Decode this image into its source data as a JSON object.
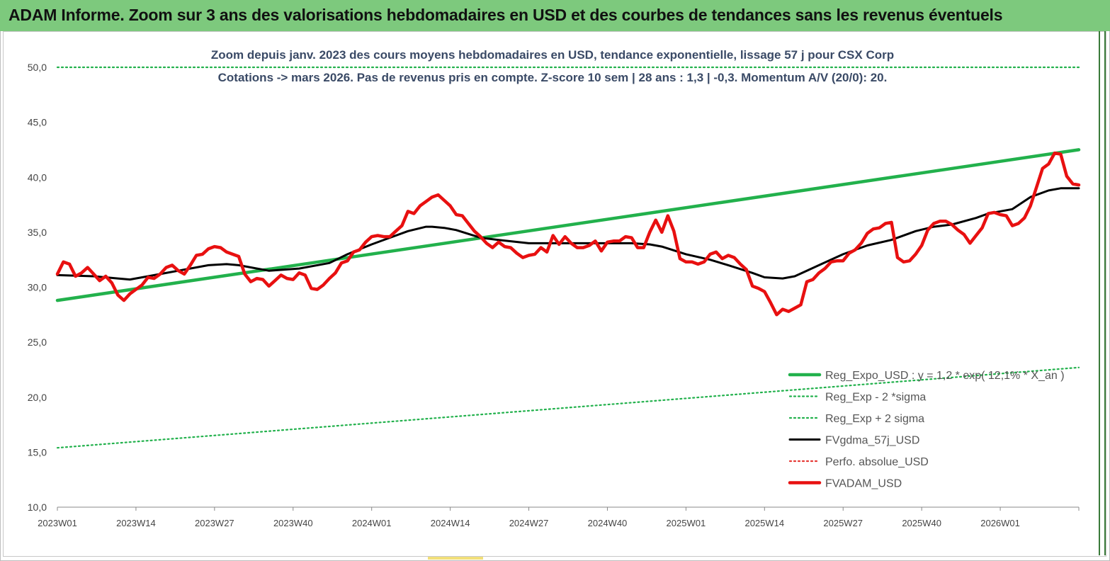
{
  "banner": {
    "title": "ADAM Informe. Zoom sur 3 ans des valorisations hebdomadaires en USD et des courbes de tendances sans les revenus éventuels",
    "color": "#7dc97d"
  },
  "chart_data": {
    "type": "line",
    "title": "Zoom depuis janv. 2023 des cours moyens hebdomadaires en USD, tendance exponentielle, lissage 57 j pour CSX Corp",
    "subtitle": "Cotations -> mars 2026. Pas de revenus pris en  compte. Z-score 10 sem  | 28 ans : 1,3  | -0,3. Momentum A/V (20/0): 20.",
    "xlabel": "",
    "ylabel": "",
    "ylim": [
      10,
      50
    ],
    "yticks": [
      "10,0",
      "15,0",
      "20,0",
      "25,0",
      "30,0",
      "35,0",
      "40,0",
      "45,0",
      "50,0"
    ],
    "n_weeks": 170,
    "xticks": [
      {
        "week": 0,
        "label": "2023W01"
      },
      {
        "week": 13,
        "label": "2023W14"
      },
      {
        "week": 26,
        "label": "2023W27"
      },
      {
        "week": 39,
        "label": "2023W40"
      },
      {
        "week": 52,
        "label": "2024W01"
      },
      {
        "week": 65,
        "label": "2024W14"
      },
      {
        "week": 78,
        "label": "2024W27"
      },
      {
        "week": 91,
        "label": "2024W40"
      },
      {
        "week": 104,
        "label": "2025W01"
      },
      {
        "week": 117,
        "label": "2025W14"
      },
      {
        "week": 130,
        "label": "2025W27"
      },
      {
        "week": 143,
        "label": "2025W40"
      },
      {
        "week": 156,
        "label": "2026W01"
      }
    ],
    "series": [
      {
        "name": "Reg_Expo_USD : y = 1,2 * exp( 12,1% *  X_an )",
        "style": "solid-thick",
        "color": "#22b14c",
        "x": [
          0,
          169
        ],
        "y": [
          28.8,
          42.5
        ]
      },
      {
        "name": "Reg_Exp - 2 *sigma",
        "style": "dotted",
        "color": "#22b14c",
        "x": [
          0,
          169
        ],
        "y": [
          15.4,
          22.7
        ]
      },
      {
        "name": "Reg_Exp + 2 sigma",
        "style": "dotted",
        "color": "#22b14c",
        "x": [
          0,
          169
        ],
        "y": [
          50.0,
          50.0
        ]
      },
      {
        "name": "FVgdma_57j_USD",
        "style": "solid",
        "color": "#000000",
        "x": [
          0,
          6,
          10,
          12,
          15,
          17,
          20,
          25,
          28,
          30,
          35,
          40,
          45,
          48,
          52,
          55,
          58,
          61,
          62,
          64,
          66,
          70,
          73,
          78,
          85,
          90,
          95,
          98,
          100,
          104,
          108,
          111,
          115,
          117,
          120,
          122,
          126,
          130,
          134,
          138,
          142,
          145,
          148,
          152,
          154,
          158,
          161,
          164,
          166,
          169
        ],
        "y": [
          31.1,
          31.0,
          30.8,
          30.7,
          31.0,
          31.2,
          31.5,
          32.0,
          32.1,
          32.0,
          31.5,
          31.7,
          32.2,
          33.0,
          33.9,
          34.5,
          35.1,
          35.5,
          35.5,
          35.4,
          35.2,
          34.5,
          34.3,
          34.0,
          34.0,
          34.0,
          34.0,
          33.9,
          33.7,
          33.0,
          32.5,
          32.0,
          31.3,
          30.9,
          30.8,
          31.0,
          32.0,
          33.0,
          33.8,
          34.3,
          35.1,
          35.5,
          35.7,
          36.3,
          36.7,
          37.1,
          38.2,
          38.8,
          39.0,
          39.0
        ]
      },
      {
        "name": "Perfo. absolue_USD",
        "style": "dotted",
        "color": "#e53935",
        "x": [],
        "y": []
      },
      {
        "name": "FVADAM_USD",
        "style": "solid-thick",
        "color": "#e81010",
        "x": [
          0,
          1,
          2,
          3,
          4,
          5,
          6,
          7,
          8,
          9,
          10,
          11,
          12,
          13,
          14,
          15,
          16,
          17,
          18,
          19,
          20,
          21,
          22,
          23,
          24,
          25,
          26,
          27,
          28,
          29,
          30,
          31,
          32,
          33,
          34,
          35,
          36,
          37,
          38,
          39,
          40,
          41,
          42,
          43,
          44,
          45,
          46,
          47,
          48,
          49,
          50,
          51,
          52,
          53,
          54,
          55,
          56,
          57,
          58,
          59,
          60,
          61,
          62,
          63,
          64,
          65,
          66,
          67,
          68,
          69,
          70,
          71,
          72,
          73,
          74,
          75,
          76,
          77,
          78,
          79,
          80,
          81,
          82,
          83,
          84,
          85,
          86,
          87,
          88,
          89,
          90,
          91,
          92,
          93,
          94,
          95,
          96,
          97,
          98,
          99,
          100,
          101,
          102,
          103,
          104,
          105,
          106,
          107,
          108,
          109,
          110,
          111,
          112,
          113,
          114,
          115,
          116,
          117,
          118,
          119,
          120,
          121,
          122,
          123,
          124,
          125,
          126,
          127,
          128,
          129,
          130,
          131,
          132,
          133,
          134,
          135,
          136,
          137,
          138,
          139,
          140,
          141,
          142,
          143,
          144,
          145,
          146,
          147,
          148,
          149,
          150,
          151,
          152,
          153,
          154,
          155,
          156,
          157,
          158,
          159,
          160,
          161,
          162,
          163,
          164,
          165,
          166,
          167,
          168,
          169
        ],
        "y": [
          31.2,
          32.3,
          32.1,
          31.0,
          31.3,
          31.8,
          31.2,
          30.6,
          31.0,
          30.4,
          29.3,
          28.8,
          29.4,
          29.8,
          30.2,
          30.9,
          30.8,
          31.2,
          31.8,
          32.0,
          31.5,
          31.2,
          32.0,
          32.9,
          33.0,
          33.5,
          33.7,
          33.6,
          33.2,
          33.0,
          32.8,
          31.2,
          30.5,
          30.8,
          30.7,
          30.1,
          30.6,
          31.1,
          30.8,
          30.7,
          31.3,
          31.1,
          29.9,
          29.8,
          30.2,
          30.8,
          31.3,
          32.2,
          32.4,
          33.2,
          33.4,
          34.1,
          34.6,
          34.7,
          34.6,
          34.6,
          35.1,
          35.6,
          36.9,
          36.7,
          37.4,
          37.8,
          38.2,
          38.4,
          37.9,
          37.4,
          36.6,
          36.5,
          35.8,
          35.1,
          34.6,
          34.0,
          33.6,
          34.1,
          33.7,
          33.6,
          33.1,
          32.7,
          32.9,
          33.0,
          33.6,
          33.2,
          34.7,
          33.9,
          34.6,
          34.0,
          33.6,
          33.6,
          33.8,
          34.2,
          33.3,
          34.1,
          34.2,
          34.2,
          34.6,
          34.5,
          33.6,
          33.6,
          35.0,
          36.1,
          35.0,
          36.5,
          35.1,
          32.6,
          32.3,
          32.3,
          32.1,
          32.3,
          33.0,
          33.2,
          32.6,
          32.9,
          32.7,
          32.1,
          31.6,
          30.1,
          29.9,
          29.6,
          28.6,
          27.5,
          28.0,
          27.8,
          28.1,
          28.4,
          30.5,
          30.7,
          31.3,
          31.7,
          32.3,
          32.4,
          32.4,
          33.1,
          33.4,
          34.0,
          34.9,
          35.3,
          35.4,
          35.8,
          35.9,
          32.7,
          32.3,
          32.4,
          33.0,
          33.8,
          35.2,
          35.8,
          36.0,
          36.0,
          35.7,
          35.2,
          34.8,
          34.0,
          34.7,
          35.4,
          36.7,
          36.8,
          36.6,
          36.5,
          35.6,
          35.8,
          36.3,
          37.4,
          39.1,
          40.8,
          41.2,
          42.2,
          42.1,
          40.1,
          39.4,
          39.3
        ]
      }
    ],
    "legend": {
      "placement": "bottom-right",
      "entries": [
        "Reg_Expo_USD : y = 1,2 * exp( 12,1% *  X_an )",
        "Reg_Exp - 2 *sigma",
        "Reg_Exp + 2 sigma",
        "FVgdma_57j_USD",
        "Perfo. absolue_USD",
        "FVADAM_USD"
      ]
    }
  }
}
